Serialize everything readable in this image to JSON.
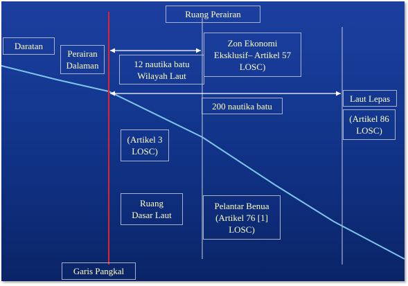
{
  "labels": {
    "ruang_perairan": "Ruang Perairan",
    "daratan": "Daratan",
    "perairan_dalaman": "Perairan\nDalaman",
    "nautika_12": "12 nautika batu\nWilayah Laut",
    "zee": "Zon Ekonomi\nEksklusif– Artikel 57\nLOSC)",
    "laut_lepas": "Laut Lepas",
    "nautika_200": "200 nautika batu",
    "artikel_86": "(Artikel 86\nLOSC)",
    "artikel_3": "(Artikel 3\nLOSC)",
    "ruang_dasar_laut": "Ruang\nDasar Laut",
    "pelantar_benua": "Pelantar Benua\n(Artikel 76 [1]\nLOSC)",
    "garis_pangkal": "Garis Pangkal"
  },
  "colors": {
    "background_top": "#1c3fa0",
    "background_bottom": "#0a2466",
    "text": "#ffffc8",
    "baseline_red": "#e0242a",
    "seabed_line": "#7fc6ea",
    "divider": "#a8b4cc"
  }
}
